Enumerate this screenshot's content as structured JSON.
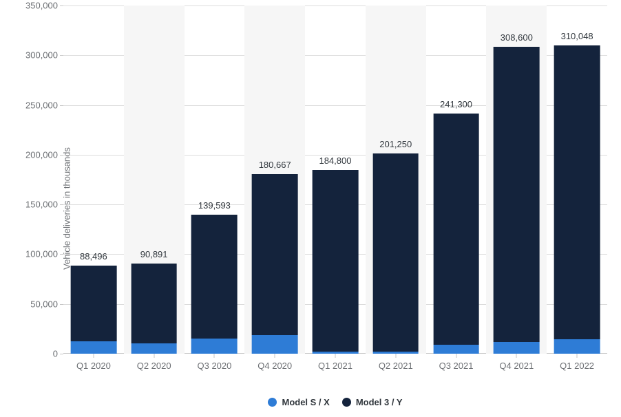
{
  "chart": {
    "type": "stacked-bar",
    "y_axis_label": "Vehicle deliveries in thousands",
    "y_min": 0,
    "y_max": 350000,
    "y_tick_step": 50000,
    "y_ticks": [
      {
        "v": 0,
        "label": "0"
      },
      {
        "v": 50000,
        "label": "50,000"
      },
      {
        "v": 100000,
        "label": "100,000"
      },
      {
        "v": 150000,
        "label": "150,000"
      },
      {
        "v": 200000,
        "label": "200,000"
      },
      {
        "v": 250000,
        "label": "250,000"
      },
      {
        "v": 300000,
        "label": "300,000"
      },
      {
        "v": 350000,
        "label": "350,000"
      }
    ],
    "grid_color": "#dcdcdc",
    "axis_line_color": "#c6c6c6",
    "tick_label_color": "#6c6f73",
    "value_label_color": "#31373d",
    "background_color": "#ffffff",
    "alt_slot_color": "#f6f6f6",
    "label_fontsize": 13,
    "axis_label_fontsize": 13,
    "bar_width_ratio": 0.76,
    "categories": [
      "Q1 2020",
      "Q2 2020",
      "Q3 2020",
      "Q4 2020",
      "Q1 2021",
      "Q2 2021",
      "Q3 2021",
      "Q4 2021",
      "Q1 2022"
    ],
    "series": [
      {
        "key": "model_s_x",
        "name": "Model S / X",
        "color": "#2e7cd6"
      },
      {
        "key": "model_3_y",
        "name": "Model 3 / Y",
        "color": "#14233c"
      }
    ],
    "data": [
      {
        "cat": "Q1 2020",
        "total_label": "88,496",
        "total": 88496,
        "model_s_x": 12200,
        "model_3_y": 76296
      },
      {
        "cat": "Q2 2020",
        "total_label": "90,891",
        "total": 90891,
        "model_s_x": 10600,
        "model_3_y": 80291
      },
      {
        "cat": "Q3 2020",
        "total_label": "139,593",
        "total": 139593,
        "model_s_x": 15200,
        "model_3_y": 124393
      },
      {
        "cat": "Q4 2020",
        "total_label": "180,667",
        "total": 180667,
        "model_s_x": 18920,
        "model_3_y": 161747
      },
      {
        "cat": "Q1 2021",
        "total_label": "184,800",
        "total": 184800,
        "model_s_x": 2020,
        "model_3_y": 182780
      },
      {
        "cat": "Q2 2021",
        "total_label": "201,250",
        "total": 201250,
        "model_s_x": 1890,
        "model_3_y": 199360
      },
      {
        "cat": "Q3 2021",
        "total_label": "241,300",
        "total": 241300,
        "model_s_x": 9275,
        "model_3_y": 232025
      },
      {
        "cat": "Q4 2021",
        "total_label": "308,600",
        "total": 308600,
        "model_s_x": 11750,
        "model_3_y": 296850
      },
      {
        "cat": "Q1 2022",
        "total_label": "310,048",
        "total": 310048,
        "model_s_x": 14724,
        "model_3_y": 295324
      }
    ],
    "legend": {
      "position": "bottom-center",
      "items": [
        {
          "label": "Model S / X",
          "color": "#2e7cd6"
        },
        {
          "label": "Model 3 / Y",
          "color": "#14233c"
        }
      ]
    }
  }
}
